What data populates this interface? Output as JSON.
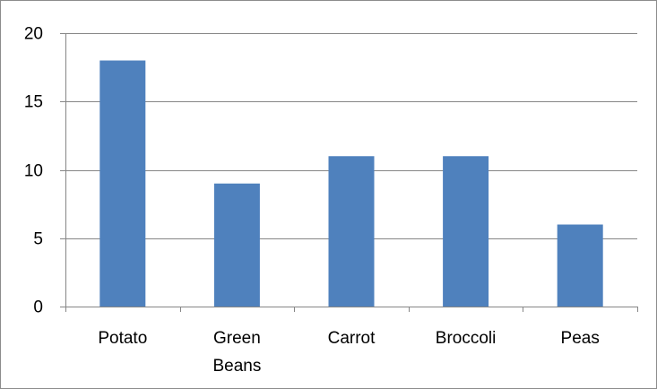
{
  "chart_data": {
    "type": "bar",
    "categories": [
      "Potato",
      "Green Beans",
      "Carrot",
      "Broccoli",
      "Peas"
    ],
    "category_lines": [
      [
        "Potato"
      ],
      [
        "Green",
        "Beans"
      ],
      [
        "Carrot"
      ],
      [
        "Broccoli"
      ],
      [
        "Peas"
      ]
    ],
    "values": [
      18,
      9,
      11,
      11,
      6
    ],
    "title": "",
    "xlabel": "",
    "ylabel": "",
    "ylim": [
      0,
      20
    ],
    "yticks": [
      0,
      5,
      10,
      15,
      20
    ],
    "grid": true,
    "legend": "none",
    "bar_color": "#4f81bd",
    "grid_color": "#868686"
  }
}
